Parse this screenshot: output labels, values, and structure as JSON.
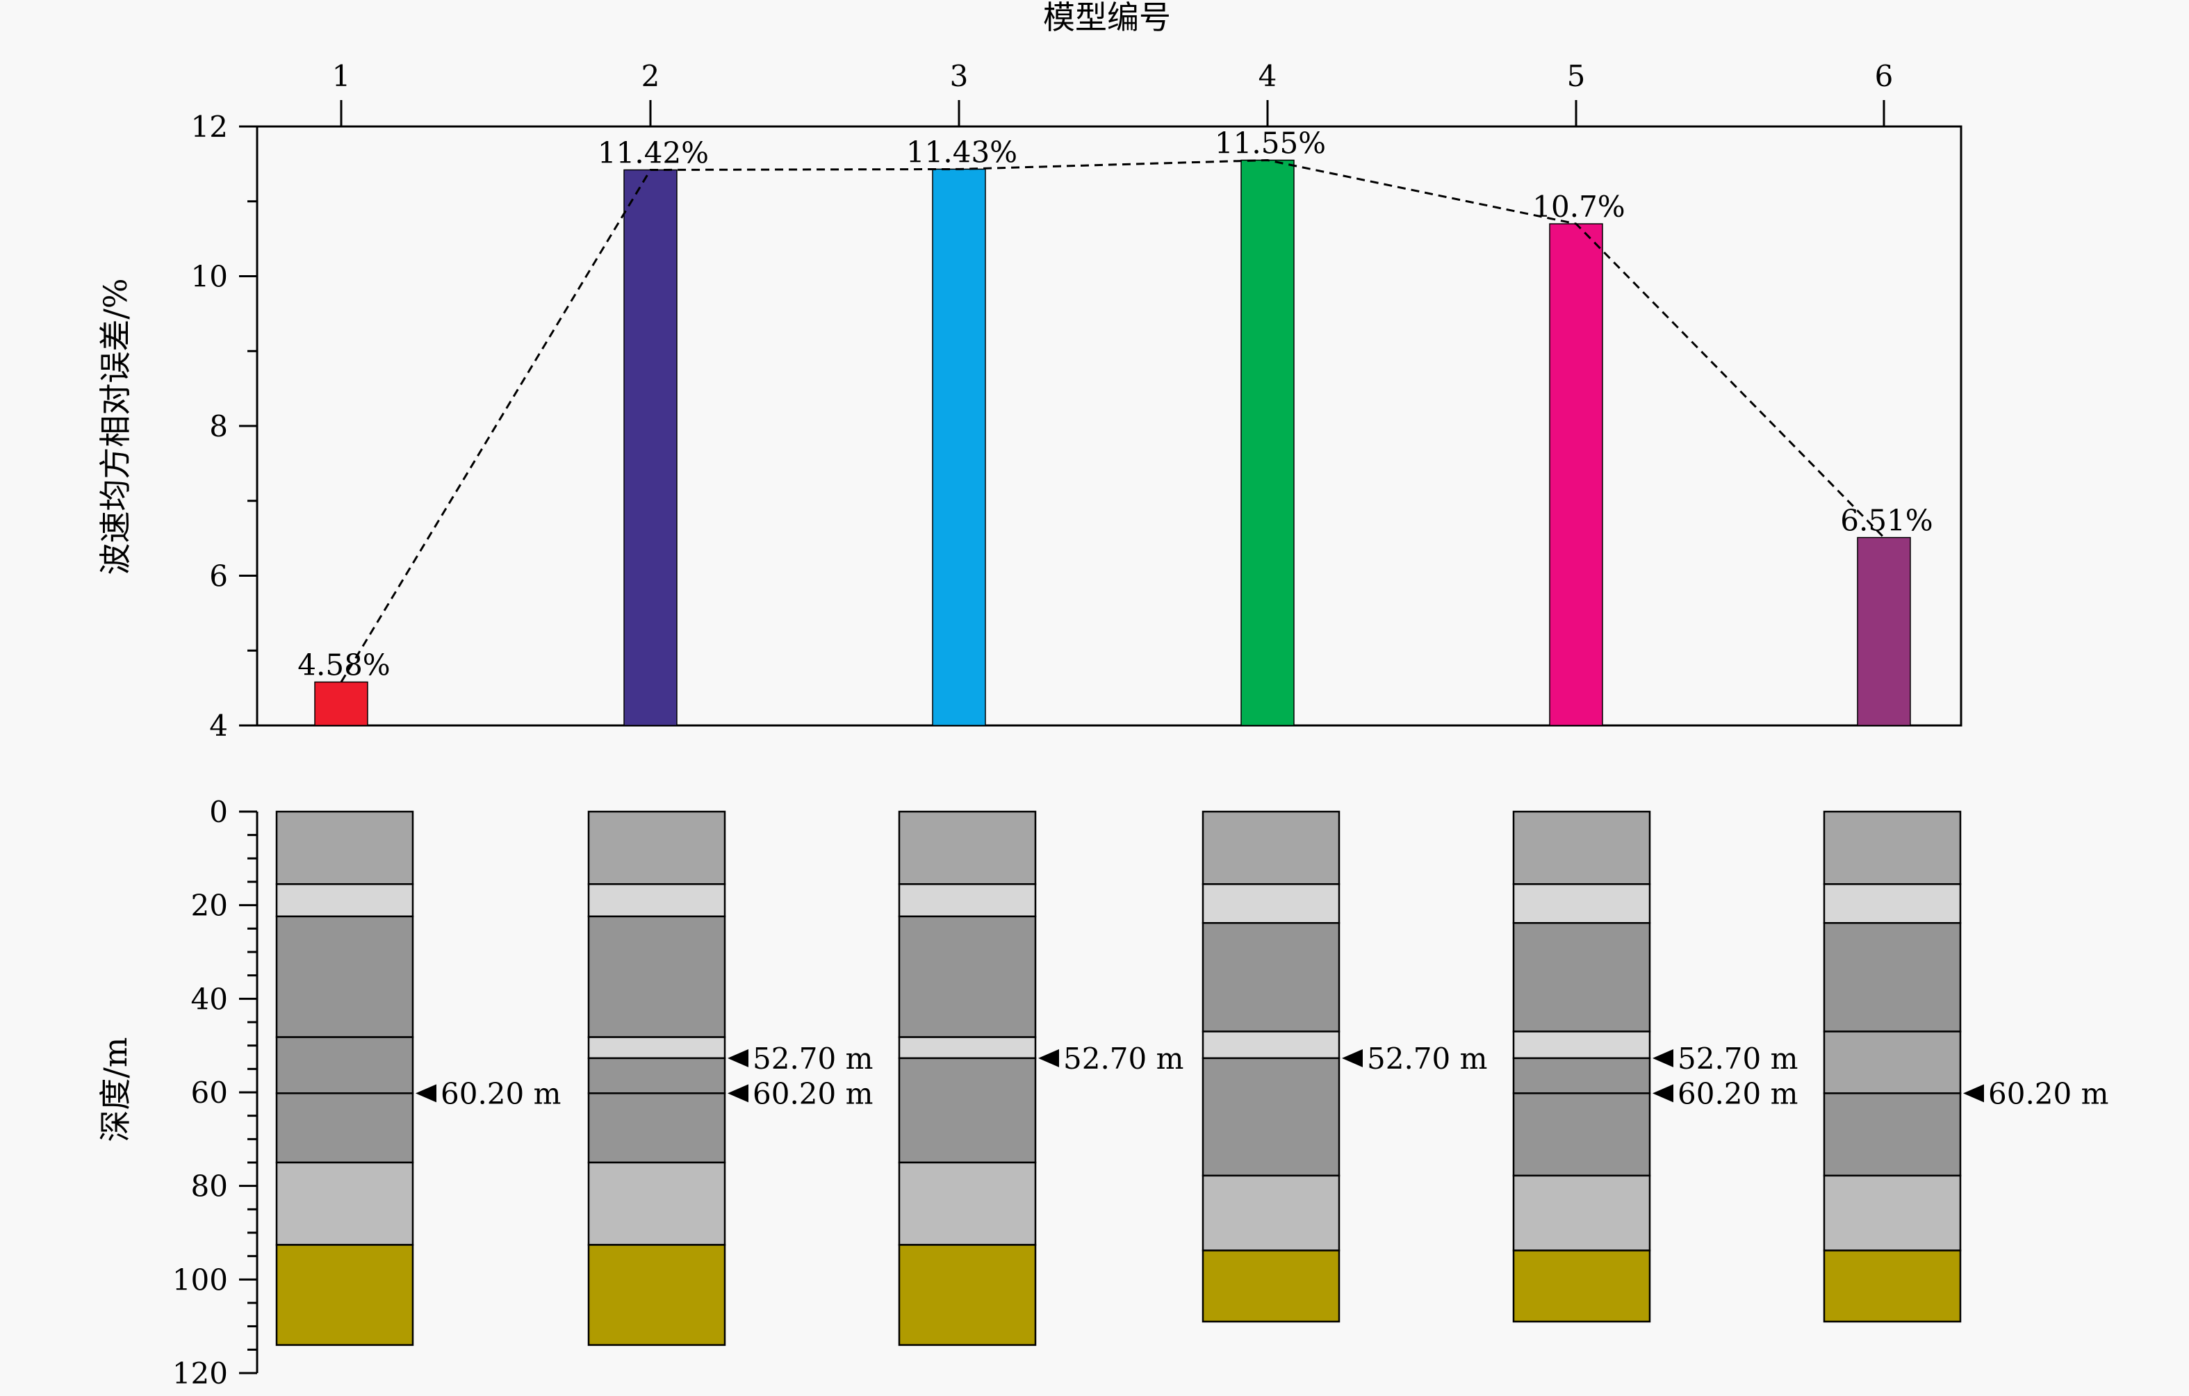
{
  "chart_data": [
    {
      "type": "bar",
      "xlabel": "模型编号",
      "ylabel": "波速均方相对误差/%",
      "categories": [
        "1",
        "2",
        "3",
        "4",
        "5",
        "6"
      ],
      "values": [
        4.58,
        11.42,
        11.43,
        11.55,
        10.7,
        6.51
      ],
      "value_labels": [
        "4.58%",
        "11.42%",
        "11.43%",
        "11.55%",
        "10.7%",
        "6.51%"
      ],
      "bar_colors": [
        "#ee1c2c",
        "#43338c",
        "#0aa6e8",
        "#00ae4f",
        "#ec0b80",
        "#93357b"
      ],
      "ylim": [
        4,
        12
      ],
      "yticks": [
        "4",
        "6",
        "8",
        "10",
        "12"
      ],
      "trend_line": "dashed",
      "grid": false
    },
    {
      "type": "column-profile",
      "ylabel": "深度/m",
      "ylim": [
        0,
        120
      ],
      "yticks": [
        "0",
        "20",
        "40",
        "60",
        "80",
        "100",
        "120"
      ],
      "layer_colors": {
        "medium": "#a6a6a6",
        "light": "#d7d7d7",
        "dark": "#959595",
        "pale": "#bcbcbc",
        "base": "#b09b00"
      },
      "columns": [
        {
          "model": "1",
          "layers": [
            {
              "top": 0,
              "bottom": 15.5,
              "tone": "medium"
            },
            {
              "top": 15.5,
              "bottom": 22.4,
              "tone": "light"
            },
            {
              "top": 22.4,
              "bottom": 48.2,
              "tone": "dark"
            },
            {
              "top": 48.2,
              "bottom": 60.2,
              "tone": "dark"
            },
            {
              "top": 60.2,
              "bottom": 75,
              "tone": "dark"
            },
            {
              "top": 75,
              "bottom": 92.6,
              "tone": "pale"
            },
            {
              "top": 92.6,
              "bottom": 114,
              "tone": "base"
            }
          ],
          "markers": [
            {
              "depth": 60.2,
              "label": "60.20 m"
            }
          ]
        },
        {
          "model": "2",
          "layers": [
            {
              "top": 0,
              "bottom": 15.5,
              "tone": "medium"
            },
            {
              "top": 15.5,
              "bottom": 22.4,
              "tone": "light"
            },
            {
              "top": 22.4,
              "bottom": 48.2,
              "tone": "dark"
            },
            {
              "top": 48.2,
              "bottom": 52.7,
              "tone": "light"
            },
            {
              "top": 52.7,
              "bottom": 60.2,
              "tone": "dark"
            },
            {
              "top": 60.2,
              "bottom": 75,
              "tone": "dark"
            },
            {
              "top": 75,
              "bottom": 92.6,
              "tone": "pale"
            },
            {
              "top": 92.6,
              "bottom": 114,
              "tone": "base"
            }
          ],
          "markers": [
            {
              "depth": 52.7,
              "label": "52.70 m"
            },
            {
              "depth": 60.2,
              "label": "60.20 m"
            }
          ]
        },
        {
          "model": "3",
          "layers": [
            {
              "top": 0,
              "bottom": 15.5,
              "tone": "medium"
            },
            {
              "top": 15.5,
              "bottom": 22.4,
              "tone": "light"
            },
            {
              "top": 22.4,
              "bottom": 48.2,
              "tone": "dark"
            },
            {
              "top": 48.2,
              "bottom": 52.7,
              "tone": "light"
            },
            {
              "top": 52.7,
              "bottom": 75,
              "tone": "dark"
            },
            {
              "top": 75,
              "bottom": 92.6,
              "tone": "pale"
            },
            {
              "top": 92.6,
              "bottom": 114,
              "tone": "base"
            }
          ],
          "markers": [
            {
              "depth": 52.7,
              "label": "52.70 m"
            }
          ]
        },
        {
          "model": "4",
          "layers": [
            {
              "top": 0,
              "bottom": 15.5,
              "tone": "medium"
            },
            {
              "top": 15.5,
              "bottom": 23.8,
              "tone": "light"
            },
            {
              "top": 23.8,
              "bottom": 47,
              "tone": "dark"
            },
            {
              "top": 47,
              "bottom": 52.7,
              "tone": "light"
            },
            {
              "top": 52.7,
              "bottom": 77.8,
              "tone": "dark"
            },
            {
              "top": 77.8,
              "bottom": 93.8,
              "tone": "pale"
            },
            {
              "top": 93.8,
              "bottom": 109,
              "tone": "base"
            }
          ],
          "markers": [
            {
              "depth": 52.7,
              "label": "52.70 m"
            }
          ]
        },
        {
          "model": "5",
          "layers": [
            {
              "top": 0,
              "bottom": 15.5,
              "tone": "medium"
            },
            {
              "top": 15.5,
              "bottom": 23.8,
              "tone": "light"
            },
            {
              "top": 23.8,
              "bottom": 47,
              "tone": "dark"
            },
            {
              "top": 47,
              "bottom": 52.7,
              "tone": "light"
            },
            {
              "top": 52.7,
              "bottom": 60.2,
              "tone": "dark"
            },
            {
              "top": 60.2,
              "bottom": 77.8,
              "tone": "dark"
            },
            {
              "top": 77.8,
              "bottom": 93.8,
              "tone": "pale"
            },
            {
              "top": 93.8,
              "bottom": 109,
              "tone": "base"
            }
          ],
          "markers": [
            {
              "depth": 52.7,
              "label": "52.70 m"
            },
            {
              "depth": 60.2,
              "label": "60.20 m"
            }
          ]
        },
        {
          "model": "6",
          "layers": [
            {
              "top": 0,
              "bottom": 15.5,
              "tone": "medium"
            },
            {
              "top": 15.5,
              "bottom": 23.8,
              "tone": "light"
            },
            {
              "top": 23.8,
              "bottom": 47,
              "tone": "dark"
            },
            {
              "top": 47,
              "bottom": 60.2,
              "tone": "medium"
            },
            {
              "top": 60.2,
              "bottom": 77.8,
              "tone": "dark"
            },
            {
              "top": 77.8,
              "bottom": 93.8,
              "tone": "pale"
            },
            {
              "top": 93.8,
              "bottom": 109,
              "tone": "base"
            }
          ],
          "markers": [
            {
              "depth": 60.2,
              "label": "60.20 m"
            }
          ]
        }
      ]
    }
  ]
}
